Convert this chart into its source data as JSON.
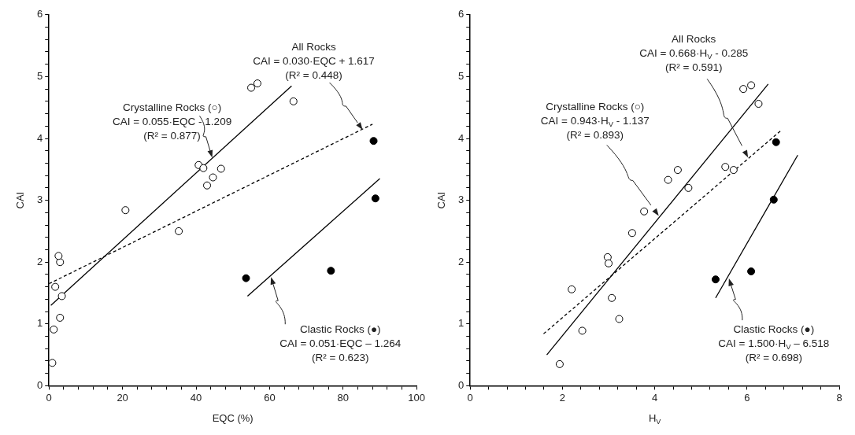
{
  "chart_data": [
    {
      "type": "scatter",
      "xlabel": "EQC (%)",
      "ylabel": "CAI",
      "grid": false,
      "legend": false,
      "xlim": [
        0,
        100
      ],
      "ylim": [
        0,
        6
      ],
      "xticks": [
        0,
        {
          "value": 4,
          "label": null
        },
        {
          "value": 8,
          "label": null
        },
        {
          "value": 12,
          "label": null
        },
        {
          "value": 16,
          "label": null
        },
        20,
        {
          "value": 24,
          "label": null
        },
        {
          "value": 28,
          "label": null
        },
        {
          "value": 32,
          "label": null
        },
        {
          "value": 36,
          "label": null
        },
        40,
        {
          "value": 44,
          "label": null
        },
        {
          "value": 48,
          "label": null
        },
        {
          "value": 52,
          "label": null
        },
        {
          "value": 56,
          "label": null
        },
        60,
        {
          "value": 64,
          "label": null
        },
        {
          "value": 68,
          "label": null
        },
        {
          "value": 72,
          "label": null
        },
        {
          "value": 76,
          "label": null
        },
        80,
        {
          "value": 84,
          "label": null
        },
        {
          "value": 88,
          "label": null
        },
        {
          "value": 92,
          "label": null
        },
        {
          "value": 96,
          "label": null
        },
        100
      ],
      "yticks": [
        0,
        {
          "value": 0.2,
          "label": null
        },
        {
          "value": 0.4,
          "label": null
        },
        {
          "value": 0.6,
          "label": null
        },
        {
          "value": 0.8,
          "label": null
        },
        1,
        {
          "value": 1.2,
          "label": null
        },
        {
          "value": 1.4,
          "label": null
        },
        {
          "value": 1.6,
          "label": null
        },
        {
          "value": 1.8,
          "label": null
        },
        2,
        {
          "value": 2.2,
          "label": null
        },
        {
          "value": 2.4,
          "label": null
        },
        {
          "value": 2.6,
          "label": null
        },
        {
          "value": 2.8,
          "label": null
        },
        3,
        {
          "value": 3.2,
          "label": null
        },
        {
          "value": 3.4,
          "label": null
        },
        {
          "value": 3.6,
          "label": null
        },
        {
          "value": 3.8,
          "label": null
        },
        4,
        {
          "value": 4.2,
          "label": null
        },
        {
          "value": 4.4,
          "label": null
        },
        {
          "value": 4.6,
          "label": null
        },
        {
          "value": 4.8,
          "label": null
        },
        5,
        {
          "value": 5.2,
          "label": null
        },
        {
          "value": 5.4,
          "label": null
        },
        {
          "value": 5.6,
          "label": null
        },
        {
          "value": 5.8,
          "label": null
        },
        6
      ],
      "series": [
        {
          "marker": "circle",
          "color": "#ffffff",
          "x": [
            0.9,
            1.3,
            3,
            3.5,
            1.7,
            3,
            2.6,
            20.8,
            35.3,
            40.7,
            42,
            43,
            44.6,
            46.8,
            55,
            56.7,
            66.5
          ],
          "values": [
            0.37,
            0.91,
            1.1,
            1.45,
            1.6,
            2.0,
            2.1,
            2.84,
            2.5,
            3.57,
            3.52,
            3.24,
            3.37,
            3.51,
            4.82,
            4.89,
            4.6
          ]
        },
        {
          "marker": "circle",
          "color": "#000000",
          "x": [
            53.6,
            76.7,
            88.3,
            88.8
          ],
          "values": [
            1.74,
            1.86,
            3.96,
            3.03
          ]
        },
        {
          "type": "line",
          "marker": "none",
          "color": "#000000",
          "line_style": "solid",
          "x": [
            0.5,
            66
          ],
          "values": [
            1.3,
            4.85
          ]
        },
        {
          "type": "line",
          "marker": "none",
          "color": "#000000",
          "line_style": "dashed",
          "x": [
            0,
            88
          ],
          "values": [
            1.65,
            4.23
          ]
        },
        {
          "type": "line",
          "marker": "none",
          "color": "#000000",
          "line_style": "solid",
          "x": [
            54,
            90
          ],
          "values": [
            1.45,
            3.35
          ]
        }
      ],
      "annotations": [
        "Crystalline Rocks (○)\nCAI = 0.055·EQC - 1.209\n(R² = 0.877)",
        "All Rocks\nCAI = 0.030·EQC + 1.617\n(R² = 0.448)",
        "Clastic Rocks (●)\nCAI = 0.051·EQC – 1.264\n(R² = 0.623)"
      ]
    },
    {
      "type": "scatter",
      "xlabel": "H$_{V}$",
      "ylabel": "CAI",
      "grid": false,
      "legend": false,
      "xlim": [
        0,
        8
      ],
      "ylim": [
        0,
        6
      ],
      "xticks": [
        0,
        {
          "value": 0.4,
          "label": null
        },
        {
          "value": 0.8,
          "label": null
        },
        {
          "value": 1.2,
          "label": null
        },
        {
          "value": 1.6,
          "label": null
        },
        2,
        {
          "value": 2.4,
          "label": null
        },
        {
          "value": 2.8,
          "label": null
        },
        {
          "value": 3.2,
          "label": null
        },
        {
          "value": 3.6,
          "label": null
        },
        4,
        {
          "value": 4.4,
          "label": null
        },
        {
          "value": 4.8,
          "label": null
        },
        {
          "value": 5.2,
          "label": null
        },
        {
          "value": 5.6,
          "label": null
        },
        6,
        {
          "value": 6.4,
          "label": null
        },
        {
          "value": 6.8,
          "label": null
        },
        {
          "value": 7.2,
          "label": null
        },
        {
          "value": 7.6,
          "label": null
        },
        8
      ],
      "yticks": [
        0,
        {
          "value": 0.2,
          "label": null
        },
        {
          "value": 0.4,
          "label": null
        },
        {
          "value": 0.6,
          "label": null
        },
        {
          "value": 0.8,
          "label": null
        },
        1,
        {
          "value": 1.2,
          "label": null
        },
        {
          "value": 1.4,
          "label": null
        },
        {
          "value": 1.6,
          "label": null
        },
        {
          "value": 1.8,
          "label": null
        },
        2,
        {
          "value": 2.2,
          "label": null
        },
        {
          "value": 2.4,
          "label": null
        },
        {
          "value": 2.6,
          "label": null
        },
        {
          "value": 2.8,
          "label": null
        },
        3,
        {
          "value": 3.2,
          "label": null
        },
        {
          "value": 3.4,
          "label": null
        },
        {
          "value": 3.6,
          "label": null
        },
        {
          "value": 3.8,
          "label": null
        },
        4,
        {
          "value": 4.2,
          "label": null
        },
        {
          "value": 4.4,
          "label": null
        },
        {
          "value": 4.6,
          "label": null
        },
        {
          "value": 4.8,
          "label": null
        },
        5,
        {
          "value": 5.2,
          "label": null
        },
        {
          "value": 5.4,
          "label": null
        },
        {
          "value": 5.6,
          "label": null
        },
        {
          "value": 5.8,
          "label": null
        },
        6
      ],
      "series": [
        {
          "marker": "circle",
          "color": "#ffffff",
          "x": [
            1.94,
            2.2,
            2.43,
            2.98,
            3.0,
            3.07,
            3.23,
            3.51,
            3.77,
            4.29,
            4.5,
            4.73,
            5.53,
            5.71,
            5.92,
            6.09,
            6.25
          ],
          "values": [
            0.35,
            1.56,
            0.89,
            2.08,
            1.98,
            1.42,
            1.08,
            2.47,
            2.82,
            3.33,
            3.49,
            3.2,
            3.54,
            3.49,
            4.8,
            4.86,
            4.56
          ]
        },
        {
          "marker": "circle",
          "color": "#000000",
          "x": [
            5.32,
            6.09,
            6.58,
            6.63
          ],
          "values": [
            1.72,
            1.85,
            3.01,
            3.94
          ]
        },
        {
          "type": "line",
          "marker": "none",
          "color": "#000000",
          "line_style": "solid",
          "x": [
            1.66,
            6.46
          ],
          "values": [
            0.5,
            4.88
          ]
        },
        {
          "type": "line",
          "marker": "none",
          "color": "#000000",
          "line_style": "dashed",
          "x": [
            1.59,
            6.74
          ],
          "values": [
            0.84,
            4.13
          ]
        },
        {
          "type": "line",
          "marker": "none",
          "color": "#000000",
          "line_style": "solid",
          "x": [
            5.32,
            7.1
          ],
          "values": [
            1.42,
            3.73
          ]
        }
      ],
      "annotations": [
        "All Rocks\nCAI = 0.668·H$_{V}$ - 0.285\n(R² = 0.591)",
        "Crystalline Rocks (○)\nCAI = 0.943·H$_{V}$ - 1.137\n(R² = 0.893)",
        "Clastic Rocks (●)\nCAI = 1.500·H$_{V}$ – 6.518\n(R² = 0.698)"
      ]
    }
  ]
}
